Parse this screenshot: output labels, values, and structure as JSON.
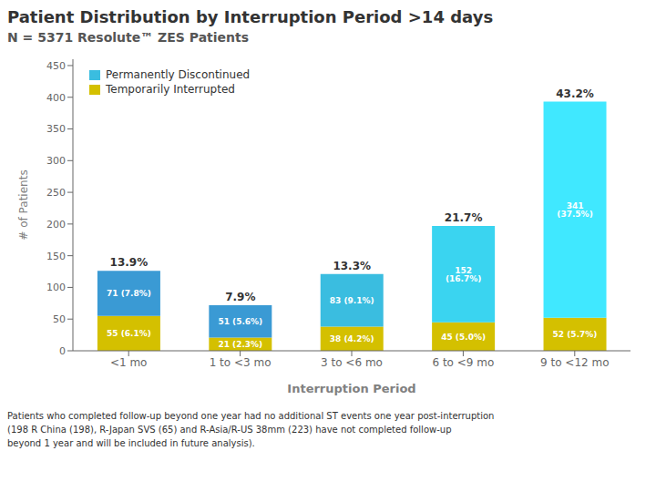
{
  "chart_data": {
    "type": "bar",
    "title": "Patient Distribution by Interruption Period >14 days",
    "subtitle": "N = 5371 Resolute™ ZES Patients",
    "xlabel": "Interruption Period",
    "ylabel": "# of Patients",
    "categories": [
      "<1 mo",
      "1 to <3 mo",
      "3 to <6 mo",
      "6 to <9 mo",
      "9 to <12 mo"
    ],
    "series": [
      {
        "name": "Temporarily Interrupted",
        "color": "#d4c000",
        "values": [
          55,
          21,
          38,
          45,
          52
        ],
        "value_labels": [
          "55 (6.1%)",
          "21 (2.3%)",
          "38 (4.2%)",
          "45 (5.0%)",
          "52 (5.7%)"
        ]
      },
      {
        "name": "Permanently Discontinued",
        "color": "#3abde0",
        "colors": [
          "#3a9ad4",
          "#3a9ad4",
          "#3abde0",
          "#3ad4f0",
          "#40e8ff"
        ],
        "values": [
          71,
          51,
          83,
          152,
          341
        ],
        "value_labels": [
          "71 (7.8%)",
          "51 (5.6%)",
          "83 (9.1%)",
          "152 (16.7%)",
          "341 (37.5%)"
        ]
      }
    ],
    "annotations": [
      {
        "category": "<1 mo",
        "text": "13.9%"
      },
      {
        "category": "1 to <3 mo",
        "text": "7.9%"
      },
      {
        "category": "3 to <6 mo",
        "text": "13.3%"
      },
      {
        "category": "6 to <9 mo",
        "text": "21.7%"
      },
      {
        "category": "9 to <12 mo",
        "text": "43.2%"
      }
    ],
    "ylim": [
      0,
      460
    ],
    "yticks": [
      0,
      50,
      100,
      150,
      200,
      250,
      300,
      350,
      400,
      450
    ],
    "stacked": true,
    "data_labels": true,
    "grid": false,
    "legend": "upper left",
    "footnote": "Patients who completed follow-up beyond one year had no additional ST events one year post-interruption\n(198 R China (198), R-Japan SVS (65) and R-Asia/R-US 38mm (223) have not completed follow-up\nbeyond 1 year and will be included in future analysis)."
  }
}
